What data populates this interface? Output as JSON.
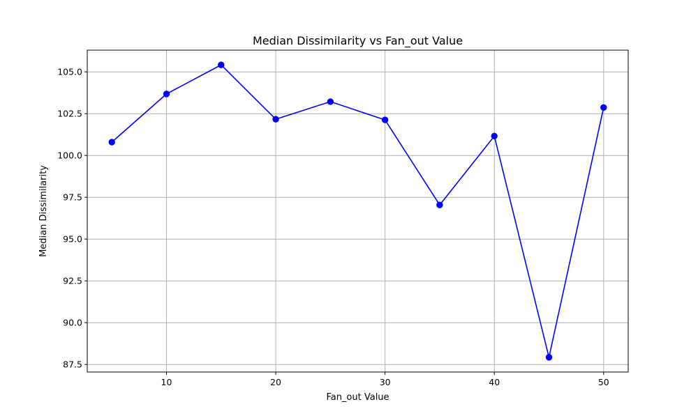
{
  "chart_data": {
    "type": "line",
    "title": "Median Dissimilarity vs Fan_out Value",
    "xlabel": "Fan_out Value",
    "ylabel": "Median Dissimilarity",
    "x": [
      5,
      10,
      15,
      20,
      25,
      30,
      35,
      40,
      45,
      50
    ],
    "series": [
      {
        "values": [
          100.8,
          103.68,
          105.42,
          102.17,
          103.22,
          102.13,
          97.04,
          101.16,
          87.93,
          102.87
        ],
        "color": "#0000ff",
        "marker": "circle"
      }
    ],
    "xlim": [
      2.75,
      52.25
    ],
    "ylim": [
      87.05,
      106.3
    ],
    "xticks": [
      10,
      20,
      30,
      40,
      50
    ],
    "yticks": [
      87.5,
      90.0,
      92.5,
      95.0,
      97.5,
      100.0,
      102.5,
      105.0
    ],
    "xtick_labels": [
      "10",
      "20",
      "30",
      "40",
      "50"
    ],
    "ytick_labels": [
      "87.5",
      "90.0",
      "92.5",
      "95.0",
      "97.5",
      "100.0",
      "102.5",
      "105.0"
    ],
    "grid": true,
    "legend": false
  }
}
